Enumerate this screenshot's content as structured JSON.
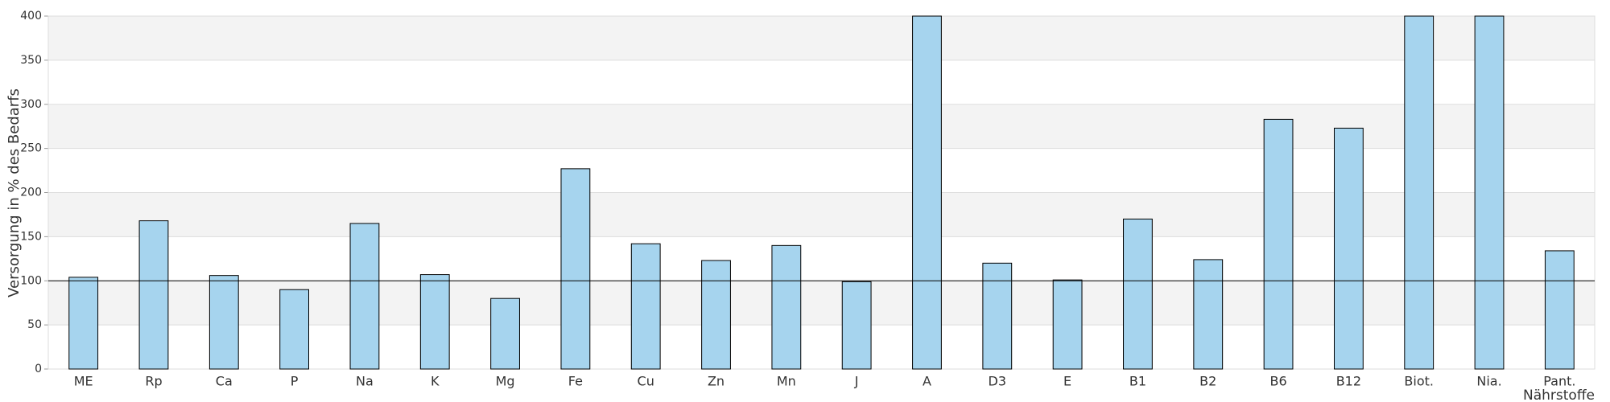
{
  "chart_data": {
    "type": "bar",
    "y_label": "Versorgung in % des Bedarfs",
    "x_label": "Nährstoffe",
    "categories": [
      "ME",
      "Rp",
      "Ca",
      "P",
      "Na",
      "K",
      "Mg",
      "Fe",
      "Cu",
      "Zn",
      "Mn",
      "J",
      "A",
      "D3",
      "E",
      "B1",
      "B2",
      "B6",
      "B12",
      "Biot.",
      "Nia.",
      "Pant."
    ],
    "values": [
      104,
      168,
      106,
      90,
      165,
      107,
      80,
      227,
      142,
      123,
      140,
      99,
      400,
      120,
      101,
      170,
      124,
      283,
      273,
      400,
      400,
      134
    ],
    "color": "#a6d4ee",
    "ylim": [
      0,
      400
    ],
    "yticks": [
      0,
      50,
      100,
      150,
      200,
      250,
      300,
      350,
      400
    ],
    "grid": true,
    "reference_line": 100
  }
}
